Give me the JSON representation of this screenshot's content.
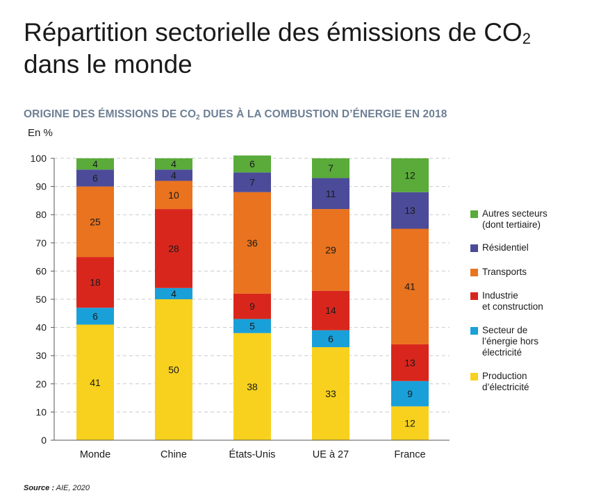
{
  "title_line1": "Répartition sectorielle des émissions de CO",
  "title_sub": "2",
  "title_line2": "dans le monde",
  "subtitle_a": "ORIGINE DES ÉMISSIONS DE CO",
  "subtitle_sub": "2",
  "subtitle_b": " DUES À LA COMBUSTION D’ÉNERGIE EN 2018",
  "unit_label": "En %",
  "source_label": "Source :",
  "source_value": " AIE, 2020",
  "legend": [
    {
      "lines": [
        "Autres secteurs",
        "(dont tertiaire)"
      ],
      "color": "#5aab3a"
    },
    {
      "lines": [
        "Résidentiel"
      ],
      "color": "#4c4b99"
    },
    {
      "lines": [
        "Transports"
      ],
      "color": "#e9731e"
    },
    {
      "lines": [
        "Industrie",
        "et construction"
      ],
      "color": "#d9261c"
    },
    {
      "lines": [
        "Secteur de",
        "l’énergie hors",
        "électricité"
      ],
      "color": "#1aa0d8"
    },
    {
      "lines": [
        "Production",
        "d’électricité"
      ],
      "color": "#f7d11e"
    }
  ],
  "chart_data": {
    "type": "bar",
    "stacked": true,
    "categories": [
      "Monde",
      "Chine",
      "États-Unis",
      "UE à 27",
      "France"
    ],
    "ylim": [
      0,
      100
    ],
    "yticks": [
      0,
      10,
      20,
      30,
      40,
      50,
      60,
      70,
      80,
      90,
      100
    ],
    "grid": true,
    "legend_position": "right",
    "series": [
      {
        "name": "Production d’électricité",
        "color": "#f7d11e",
        "values": [
          41,
          50,
          38,
          33,
          12
        ]
      },
      {
        "name": "Secteur de l’énergie hors électricité",
        "color": "#1aa0d8",
        "values": [
          6,
          4,
          5,
          6,
          9
        ]
      },
      {
        "name": "Industrie et construction",
        "color": "#d9261c",
        "values": [
          18,
          28,
          9,
          14,
          13
        ]
      },
      {
        "name": "Transports",
        "color": "#e9731e",
        "values": [
          25,
          10,
          36,
          29,
          41
        ]
      },
      {
        "name": "Résidentiel",
        "color": "#4c4b99",
        "values": [
          6,
          4,
          7,
          11,
          13
        ]
      },
      {
        "name": "Autres secteurs (dont tertiaire)",
        "color": "#5aab3a",
        "values": [
          4,
          4,
          6,
          7,
          12
        ]
      }
    ]
  }
}
